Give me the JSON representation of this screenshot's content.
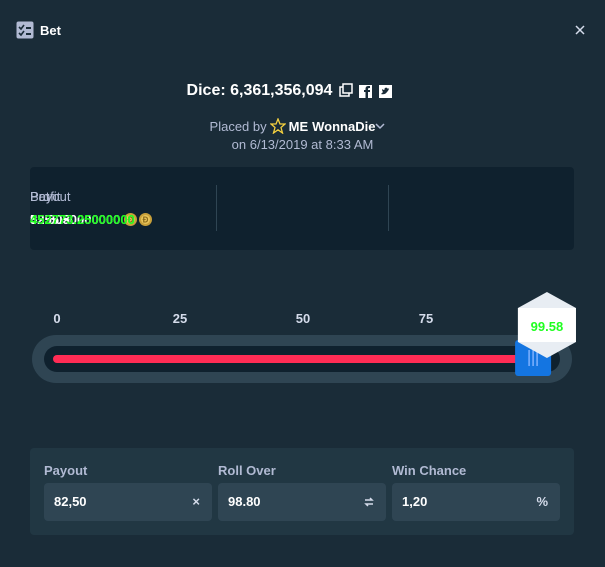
{
  "header": {
    "title": "Bet"
  },
  "game": {
    "title": "Dice: 6,361,356,094",
    "placed_by": "Placed by",
    "badge": "ME",
    "user": "WonnaDie",
    "date": "on 6/13/2019 at 8:33 AM"
  },
  "stats": [
    {
      "label": "Bet",
      "value": "5555.50000000"
    },
    {
      "label": "Payout",
      "value": "82.50×"
    },
    {
      "label": "Profit",
      "value": "452773.25000000"
    }
  ],
  "slider": {
    "lim": [
      0,
      100
    ],
    "ticks": [
      0,
      25,
      50,
      75
    ],
    "result": 99.58
  },
  "inputs": [
    {
      "label": "Payout",
      "value": "82,50",
      "suffix": "×"
    },
    {
      "label": "Roll Over",
      "value": {
        "value": 98.8,
        "label": "98.80"
      }
    },
    {
      "label": "Win Chance",
      "value": "1,20",
      "suffix": "%"
    }
  ]
}
